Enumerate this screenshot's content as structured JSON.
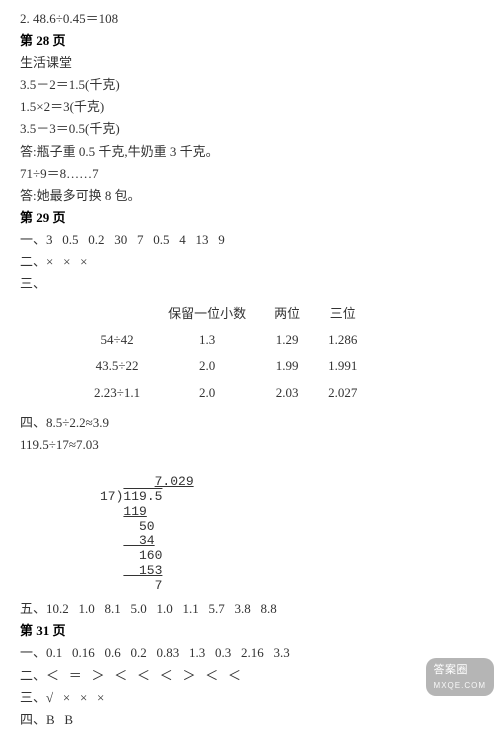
{
  "l1": "2. 48.6÷0.45＝108",
  "h28": "第 28 页",
  "l2": "生活课堂",
  "l3": "3.5－2＝1.5(千克)",
  "l4": "1.5×2＝3(千克)",
  "l5": "3.5－3＝0.5(千克)",
  "l6": "答:瓶子重 0.5 千克,牛奶重 3 千克。",
  "l7": "71÷9＝8……7",
  "l8": "答:她最多可换 8 包。",
  "h29": "第 29 页",
  "l9": "一、3   0.5   0.2   30   7   0.5   4   13   9",
  "l10": "二、×   ×   ×",
  "l11": "三、",
  "table": {
    "headers": [
      "",
      "保留一位小数",
      "两位",
      "三位"
    ],
    "rows": [
      [
        "54÷42",
        "1.3",
        "1.29",
        "1.286"
      ],
      [
        "43.5÷22",
        "2.0",
        "1.99",
        "1.991"
      ],
      [
        "2.23÷1.1",
        "2.0",
        "2.03",
        "2.027"
      ]
    ]
  },
  "l12": "四、8.5÷2.2≈3.9",
  "l13": "119.5÷17≈7.03",
  "longdiv": {
    "quotient": "7.029",
    "divisor": "17",
    "dividend": "119.5",
    "s1": "119",
    "s2": "  50",
    "s3": "  34",
    "s4": "  160",
    "s5": "  153",
    "s6": "    7"
  },
  "l14": "五、10.2   1.0   8.1   5.0   1.0   1.1   5.7   3.8   8.8",
  "h31": "第 31 页",
  "l15": "一、0.1   0.16   0.6   0.2   0.83   1.3   0.3   2.16   3.3",
  "l16": "二、＜   ＝   ＞   ＜   ＜   ＜   ＞   ＜   ＜",
  "l17": "三、√   ×   ×   ×",
  "l18": "四、B   B",
  "wm_main": "答案圈",
  "wm_sub": "MXQE.COM",
  "colors": {
    "text": "#333333",
    "bg": "#ffffff",
    "wm_bg": "rgba(120,120,120,0.55)",
    "wm_fg": "#ffffff"
  }
}
